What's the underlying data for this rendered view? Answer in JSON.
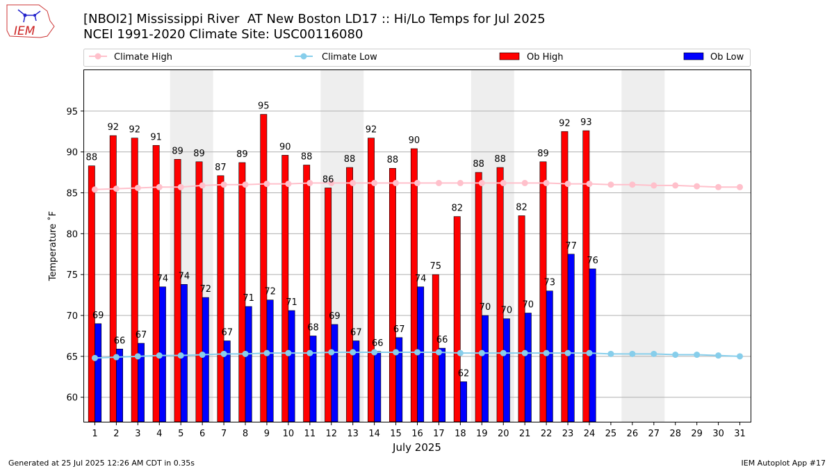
{
  "header": {
    "title_line1": "[NBOI2] Mississippi River  AT New Boston LD17 :: Hi/Lo Temps for Jul 2025",
    "title_line2": "NCEI 1991-2020 Climate Site: USC00116080",
    "logo_text": "IEM"
  },
  "footer": {
    "left": "Generated at 25 Jul 2025 12:26 AM CDT in 0.35s",
    "right": "IEM Autoplot App #17"
  },
  "colors": {
    "ob_high": "#ff0000",
    "ob_low": "#0000ff",
    "climate_high": "#ffc0cb",
    "climate_low": "#87ceeb",
    "weekend_shade": "#eeeeee",
    "grid": "#b0b0b0"
  },
  "chart_data": {
    "type": "bar",
    "xlabel": "July 2025",
    "ylabel": "Temperature ˚F",
    "ylim": [
      57,
      100
    ],
    "yticks": [
      60,
      65,
      70,
      75,
      80,
      85,
      90,
      95
    ],
    "grid": "horizontal",
    "legend_position": "top",
    "legend": [
      "Climate High",
      "Climate Low",
      "Ob High",
      "Ob Low"
    ],
    "shaded_days": [
      [
        5,
        6
      ],
      [
        12,
        13
      ],
      [
        19,
        20
      ],
      [
        26,
        27
      ]
    ],
    "days": [
      1,
      2,
      3,
      4,
      5,
      6,
      7,
      8,
      9,
      10,
      11,
      12,
      13,
      14,
      15,
      16,
      17,
      18,
      19,
      20,
      21,
      22,
      23,
      24,
      25,
      26,
      27,
      28,
      29,
      30,
      31
    ],
    "series": [
      {
        "name": "Ob High",
        "kind": "bar",
        "values": [
          88.3,
          92.0,
          91.7,
          90.8,
          89.1,
          88.8,
          87.1,
          88.7,
          94.6,
          89.6,
          88.4,
          85.6,
          88.1,
          91.7,
          88.0,
          90.4,
          75.0,
          82.1,
          87.5,
          88.1,
          82.2,
          88.8,
          92.5,
          92.6
        ],
        "labels": [
          88,
          92,
          92,
          91,
          89,
          89,
          87,
          89,
          95,
          90,
          88,
          86,
          88,
          92,
          88,
          90,
          75,
          82,
          88,
          88,
          82,
          89,
          92,
          93
        ]
      },
      {
        "name": "Ob Low",
        "kind": "bar",
        "values": [
          69.0,
          65.9,
          66.6,
          73.5,
          73.8,
          72.2,
          66.9,
          71.1,
          71.9,
          70.6,
          67.5,
          68.9,
          66.9,
          65.6,
          67.3,
          73.5,
          66.0,
          61.9,
          70.0,
          69.6,
          70.3,
          73.0,
          77.5,
          75.7
        ],
        "labels": [
          69,
          66,
          67,
          74,
          74,
          72,
          67,
          71,
          72,
          71,
          68,
          69,
          67,
          66,
          67,
          74,
          66,
          62,
          70,
          70,
          70,
          73,
          77,
          76
        ]
      },
      {
        "name": "Climate High",
        "kind": "line",
        "values": [
          85.4,
          85.5,
          85.6,
          85.7,
          85.7,
          85.9,
          86.0,
          86.0,
          86.1,
          86.1,
          86.2,
          86.2,
          86.2,
          86.2,
          86.2,
          86.2,
          86.2,
          86.2,
          86.2,
          86.2,
          86.2,
          86.2,
          86.1,
          86.1,
          86.0,
          86.0,
          85.9,
          85.9,
          85.8,
          85.7,
          85.7
        ]
      },
      {
        "name": "Climate Low",
        "kind": "line",
        "values": [
          64.8,
          64.9,
          65.0,
          65.1,
          65.1,
          65.2,
          65.3,
          65.3,
          65.4,
          65.4,
          65.4,
          65.5,
          65.5,
          65.5,
          65.5,
          65.5,
          65.5,
          65.4,
          65.4,
          65.4,
          65.4,
          65.4,
          65.4,
          65.4,
          65.3,
          65.3,
          65.3,
          65.2,
          65.2,
          65.1,
          65.0
        ]
      }
    ]
  }
}
